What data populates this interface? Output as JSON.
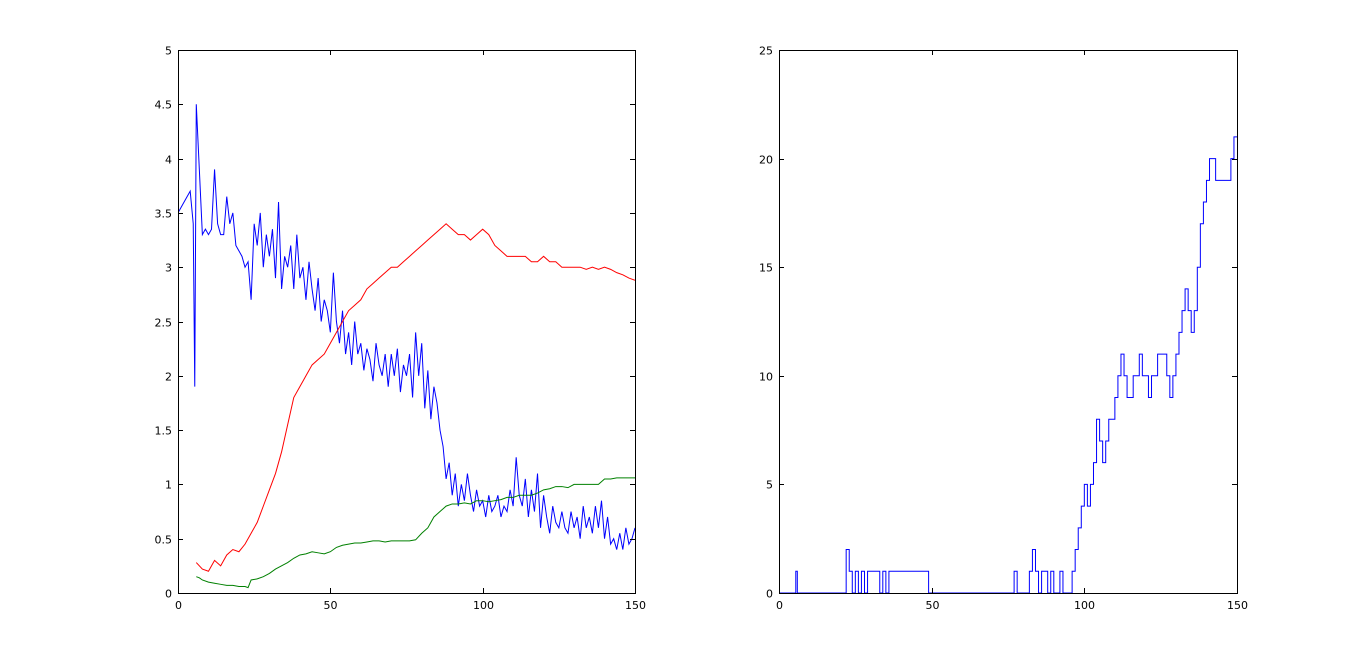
{
  "figure": {
    "background": "#ffffff"
  },
  "chart_data": [
    {
      "type": "line",
      "title": "",
      "xlabel": "",
      "ylabel": "",
      "xlim": [
        0,
        150
      ],
      "ylim": [
        0,
        5
      ],
      "grid": false,
      "xticks": [
        0,
        50,
        100,
        150
      ],
      "xtick_labels": [
        "0",
        "50",
        "100",
        "150"
      ],
      "yticks": [
        0,
        0.5,
        1,
        1.5,
        2,
        2.5,
        3,
        3.5,
        4,
        4.5,
        5
      ],
      "ytick_labels": [
        "0",
        "0.5",
        "1",
        "1.5",
        "2",
        "2.5",
        "3",
        "3.5",
        "4",
        "4.5",
        "5"
      ],
      "series": [
        {
          "color": "#0000ff",
          "x": [
            0,
            2,
            4,
            5,
            5.5,
            6,
            7,
            8,
            9,
            10,
            11,
            12,
            13,
            14,
            15,
            16,
            17,
            18,
            19,
            20,
            21,
            22,
            23,
            24,
            25,
            26,
            27,
            28,
            29,
            30,
            31,
            32,
            33,
            34,
            35,
            36,
            37,
            38,
            39,
            40,
            41,
            42,
            43,
            44,
            45,
            46,
            47,
            48,
            49,
            50,
            51,
            52,
            53,
            54,
            55,
            56,
            57,
            58,
            59,
            60,
            61,
            62,
            63,
            64,
            65,
            66,
            67,
            68,
            69,
            70,
            71,
            72,
            73,
            74,
            75,
            76,
            77,
            78,
            79,
            80,
            81,
            82,
            83,
            84,
            85,
            86,
            87,
            88,
            89,
            90,
            91,
            92,
            93,
            94,
            95,
            96,
            97,
            98,
            99,
            100,
            101,
            102,
            103,
            104,
            105,
            106,
            107,
            108,
            109,
            110,
            111,
            112,
            113,
            114,
            115,
            116,
            117,
            118,
            119,
            120,
            121,
            122,
            123,
            124,
            125,
            126,
            127,
            128,
            129,
            130,
            131,
            132,
            133,
            134,
            135,
            136,
            137,
            138,
            139,
            140,
            141,
            142,
            143,
            144,
            145,
            146,
            147,
            148,
            149,
            150
          ],
          "y": [
            3.5,
            3.6,
            3.7,
            3.4,
            1.9,
            4.5,
            3.9,
            3.3,
            3.35,
            3.3,
            3.35,
            3.9,
            3.4,
            3.3,
            3.3,
            3.65,
            3.4,
            3.5,
            3.2,
            3.15,
            3.1,
            3.0,
            3.05,
            2.7,
            3.4,
            3.2,
            3.5,
            3.0,
            3.3,
            3.1,
            3.35,
            2.9,
            3.6,
            2.8,
            3.1,
            3.0,
            3.2,
            2.8,
            3.3,
            2.9,
            3.0,
            2.7,
            3.05,
            2.8,
            2.6,
            2.9,
            2.5,
            2.7,
            2.6,
            2.4,
            2.95,
            2.5,
            2.3,
            2.6,
            2.2,
            2.4,
            2.1,
            2.5,
            2.2,
            2.3,
            2.05,
            2.25,
            2.15,
            1.95,
            2.3,
            2.1,
            2.0,
            2.2,
            1.9,
            2.2,
            2.0,
            2.25,
            1.85,
            2.1,
            2.0,
            2.2,
            1.8,
            2.4,
            2.0,
            2.3,
            1.7,
            2.05,
            1.6,
            1.9,
            1.75,
            1.5,
            1.35,
            1.05,
            1.2,
            0.9,
            1.1,
            0.8,
            1.0,
            0.85,
            1.1,
            0.9,
            0.75,
            0.95,
            0.8,
            0.85,
            0.7,
            0.9,
            0.75,
            0.8,
            0.9,
            0.7,
            0.8,
            0.75,
            0.95,
            0.8,
            1.25,
            0.9,
            0.8,
            1.05,
            0.7,
            0.95,
            0.75,
            1.1,
            0.6,
            0.9,
            0.7,
            0.55,
            0.8,
            0.65,
            0.6,
            0.75,
            0.6,
            0.55,
            0.75,
            0.6,
            0.7,
            0.5,
            0.8,
            0.6,
            0.7,
            0.55,
            0.8,
            0.6,
            0.85,
            0.5,
            0.7,
            0.45,
            0.5,
            0.4,
            0.55,
            0.4,
            0.6,
            0.45,
            0.5,
            0.6
          ]
        },
        {
          "color": "#ff0000",
          "x": [
            6,
            8,
            10,
            12,
            14,
            16,
            18,
            20,
            22,
            24,
            26,
            28,
            30,
            32,
            34,
            36,
            38,
            40,
            42,
            44,
            46,
            48,
            50,
            52,
            54,
            56,
            58,
            60,
            62,
            64,
            66,
            68,
            70,
            72,
            74,
            76,
            78,
            80,
            82,
            84,
            86,
            88,
            90,
            92,
            94,
            96,
            98,
            100,
            102,
            104,
            106,
            108,
            110,
            112,
            114,
            116,
            118,
            120,
            122,
            124,
            126,
            128,
            130,
            132,
            134,
            136,
            138,
            140,
            142,
            144,
            146,
            148,
            150
          ],
          "y": [
            0.28,
            0.22,
            0.2,
            0.3,
            0.25,
            0.35,
            0.4,
            0.38,
            0.45,
            0.55,
            0.65,
            0.8,
            0.95,
            1.1,
            1.3,
            1.55,
            1.8,
            1.9,
            2.0,
            2.1,
            2.15,
            2.2,
            2.3,
            2.4,
            2.5,
            2.6,
            2.65,
            2.7,
            2.8,
            2.85,
            2.9,
            2.95,
            3.0,
            3.0,
            3.05,
            3.1,
            3.15,
            3.2,
            3.25,
            3.3,
            3.35,
            3.4,
            3.35,
            3.3,
            3.3,
            3.25,
            3.3,
            3.35,
            3.3,
            3.2,
            3.15,
            3.1,
            3.1,
            3.1,
            3.1,
            3.05,
            3.05,
            3.1,
            3.05,
            3.05,
            3.0,
            3.0,
            3.0,
            3.0,
            2.98,
            3.0,
            2.98,
            3.0,
            2.98,
            2.95,
            2.93,
            2.9,
            2.88
          ]
        },
        {
          "color": "#008000",
          "x": [
            6,
            7,
            8,
            10,
            12,
            14,
            16,
            18,
            20,
            22,
            23,
            24,
            26,
            28,
            30,
            32,
            34,
            36,
            38,
            40,
            42,
            44,
            46,
            48,
            50,
            52,
            54,
            56,
            58,
            60,
            62,
            64,
            66,
            68,
            70,
            72,
            74,
            76,
            78,
            80,
            82,
            84,
            86,
            88,
            90,
            92,
            94,
            96,
            98,
            100,
            102,
            104,
            106,
            108,
            110,
            112,
            114,
            116,
            118,
            120,
            122,
            124,
            126,
            128,
            130,
            132,
            134,
            136,
            138,
            140,
            142,
            144,
            146,
            148,
            150
          ],
          "y": [
            0.15,
            0.14,
            0.12,
            0.1,
            0.09,
            0.08,
            0.07,
            0.07,
            0.06,
            0.06,
            0.05,
            0.12,
            0.13,
            0.15,
            0.18,
            0.22,
            0.25,
            0.28,
            0.32,
            0.35,
            0.36,
            0.38,
            0.37,
            0.36,
            0.38,
            0.42,
            0.44,
            0.45,
            0.46,
            0.46,
            0.47,
            0.48,
            0.48,
            0.47,
            0.48,
            0.48,
            0.48,
            0.48,
            0.49,
            0.55,
            0.6,
            0.7,
            0.75,
            0.8,
            0.82,
            0.82,
            0.83,
            0.82,
            0.85,
            0.85,
            0.84,
            0.85,
            0.86,
            0.88,
            0.88,
            0.9,
            0.9,
            0.9,
            0.92,
            0.95,
            0.96,
            0.98,
            0.98,
            0.97,
            1.0,
            1.0,
            1.0,
            1.0,
            1.0,
            1.05,
            1.05,
            1.06,
            1.06,
            1.06,
            1.06
          ]
        }
      ]
    },
    {
      "type": "line",
      "title": "",
      "xlabel": "",
      "ylabel": "",
      "xlim": [
        0,
        150
      ],
      "ylim": [
        0,
        25
      ],
      "grid": false,
      "xticks": [
        0,
        50,
        100,
        150
      ],
      "xtick_labels": [
        "0",
        "50",
        "100",
        "150"
      ],
      "yticks": [
        0,
        5,
        10,
        15,
        20,
        25
      ],
      "ytick_labels": [
        "0",
        "5",
        "10",
        "15",
        "20",
        "25"
      ],
      "series": [
        {
          "color": "#0000ff",
          "step": true,
          "x": [
            0,
            5.5,
            6,
            22,
            23,
            24,
            25,
            26,
            27,
            28,
            29,
            33,
            34,
            35,
            36,
            48,
            49,
            50,
            77,
            78,
            82,
            83,
            84,
            85,
            86,
            88,
            89,
            90,
            92,
            93,
            96,
            97,
            98,
            99,
            100,
            101,
            102,
            103,
            104,
            105,
            106,
            107,
            108,
            110,
            111,
            112,
            113,
            114,
            115,
            116,
            118,
            119,
            121,
            122,
            124,
            125,
            127,
            128,
            129,
            130,
            131,
            132,
            133,
            134,
            135,
            136,
            137,
            138,
            139,
            140,
            141,
            142,
            143,
            144,
            147,
            148,
            149,
            150
          ],
          "y": [
            0,
            1,
            0,
            2,
            1,
            0,
            1,
            0,
            1,
            0,
            1,
            0,
            1,
            0,
            1,
            1,
            0,
            0,
            1,
            0,
            1,
            2,
            1,
            0,
            1,
            0,
            1,
            0,
            1,
            0,
            1,
            2,
            3,
            4,
            5,
            4,
            5,
            6,
            8,
            7,
            6,
            7,
            8,
            9,
            10,
            11,
            10,
            9,
            9,
            10,
            11,
            10,
            9,
            10,
            11,
            11,
            10,
            9,
            10,
            11,
            12,
            13,
            14,
            13,
            12,
            13,
            15,
            17,
            18,
            19,
            20,
            20,
            19,
            19,
            19,
            20,
            21,
            21
          ]
        }
      ]
    }
  ]
}
